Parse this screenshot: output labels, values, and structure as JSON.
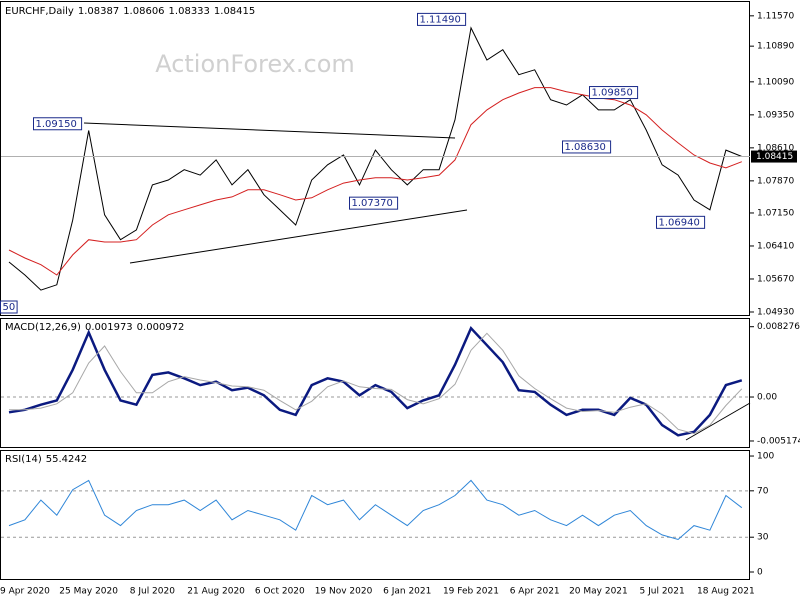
{
  "chart_data": [
    {
      "type": "line",
      "title": "EURCHF,Daily",
      "ohlc": [
        1.08387,
        1.08606,
        1.08333,
        1.08415
      ],
      "watermark": "ActionForex.com",
      "series": [
        {
          "color": "#000000",
          "values": [
            1.0605,
            1.0576,
            1.0542,
            1.0554,
            1.0699,
            1.09,
            1.0711,
            1.0655,
            1.0677,
            1.0778,
            1.0789,
            1.0812,
            1.08,
            1.0834,
            1.0778,
            1.0812,
            1.0756,
            1.0722,
            1.0688,
            1.0789,
            1.0823,
            1.0845,
            1.0778,
            1.0856,
            1.0812,
            1.0778,
            1.0812,
            1.0812,
            1.0924,
            1.113,
            1.1058,
            1.1081,
            1.1025,
            1.1036,
            1.0969,
            1.0957,
            1.098,
            1.0946,
            1.0946,
            1.0969,
            1.0901,
            1.0823,
            1.08,
            1.0744,
            1.0722,
            1.0856,
            1.08415
          ]
        },
        {
          "color": "#d42020",
          "values": [
            1.0632,
            1.0614,
            1.0599,
            1.0576,
            1.0621,
            1.0655,
            1.065,
            1.065,
            1.0655,
            1.0688,
            1.0711,
            1.0722,
            1.0733,
            1.0744,
            1.0751,
            1.0767,
            1.0767,
            1.0756,
            1.0744,
            1.0749,
            1.0767,
            1.0782,
            1.0789,
            1.0794,
            1.0794,
            1.0789,
            1.0794,
            1.08,
            1.0834,
            1.0913,
            1.0946,
            1.0969,
            1.0984,
            1.0996,
            1.0996,
            1.0987,
            1.098,
            1.0973,
            1.0969,
            1.0957,
            1.0935,
            1.0901,
            1.0872,
            1.0845,
            1.0827,
            1.0816,
            1.083
          ]
        }
      ],
      "annotations": [
        {
          "label": "1.09150",
          "value": 1.0915
        },
        {
          "label": "1.11490",
          "value": 1.1149
        },
        {
          "label": "1.07370",
          "value": 1.0737
        },
        {
          "label": "1.09850",
          "value": 1.0985
        },
        {
          "label": "1.08630",
          "value": 1.0863
        },
        {
          "label": "1.06940",
          "value": 1.0694
        },
        {
          "label": "50"
        }
      ],
      "ylim": [
        1.0484,
        1.1188
      ],
      "yticks": [
        {
          "value": 1.1157,
          "label": "1.11570"
        },
        {
          "value": 1.1089,
          "label": "1.10890"
        },
        {
          "value": 1.1009,
          "label": "1.10090"
        },
        {
          "value": 1.0935,
          "label": "1.09350"
        },
        {
          "value": 1.0861,
          "label": "1.08610"
        },
        {
          "value": 1.0787,
          "label": "1.07870"
        },
        {
          "value": 1.0715,
          "label": "1.07150"
        },
        {
          "value": 1.0641,
          "label": "1.06410"
        },
        {
          "value": 1.0567,
          "label": "1.05670"
        },
        {
          "value": 1.0493,
          "label": "1.04930"
        }
      ],
      "grid": false
    },
    {
      "type": "line",
      "title": "MACD(12,26,9)",
      "readout": [
        0.001973,
        0.000972
      ],
      "series": [
        {
          "color": "#0b1a80",
          "values": [
            -0.0018,
            -0.0015,
            -0.0009,
            -0.0004,
            0.0032,
            0.0076,
            0.0032,
            -0.0004,
            -0.0009,
            0.0026,
            0.0029,
            0.0022,
            0.0014,
            0.0018,
            0.0008,
            0.0011,
            0.0002,
            -0.0015,
            -0.0021,
            0.0014,
            0.0022,
            0.0018,
            0.0002,
            0.0014,
            0.0006,
            -0.0013,
            -0.0004,
            0.0002,
            0.0038,
            0.0081,
            0.0061,
            0.0041,
            0.0008,
            0.0006,
            -0.0009,
            -0.0021,
            -0.0015,
            -0.0015,
            -0.0021,
            -0.0001,
            -0.0009,
            -0.0033,
            -0.0045,
            -0.0041,
            -0.0021,
            0.0014,
            0.001973
          ]
        },
        {
          "color": "#a8a8a8",
          "values": [
            -0.0015,
            -0.0015,
            -0.0013,
            -0.0008,
            0.0005,
            0.004,
            0.006,
            0.003,
            0.0005,
            0.0005,
            0.0018,
            0.0024,
            0.002,
            0.0017,
            0.0013,
            0.0012,
            0.0008,
            -0.0004,
            -0.0015,
            -0.0005,
            0.0012,
            0.0019,
            0.0012,
            0.001,
            0.0009,
            -0.0003,
            -0.0008,
            -0.0002,
            0.0015,
            0.0055,
            0.0075,
            0.0055,
            0.0025,
            0.001,
            -0.0002,
            -0.0013,
            -0.0017,
            -0.0016,
            -0.0018,
            -0.0012,
            -0.0008,
            -0.002,
            -0.0038,
            -0.0043,
            -0.0033,
            -0.001,
            0.000972
          ]
        }
      ],
      "ylim": [
        -0.006,
        0.0093
      ],
      "yticks": [
        0.008276,
        {
          "value": 0,
          "label": "0.00"
        },
        -0.005174
      ],
      "grid": "dashed"
    },
    {
      "type": "line",
      "title": "RSI(14)",
      "readout": [
        55.4242
      ],
      "series": [
        {
          "color": "#2f86d8",
          "values": [
            40,
            45,
            62,
            49,
            71,
            79,
            49,
            40,
            53,
            58,
            58,
            62,
            53,
            62,
            45,
            53,
            49,
            45,
            36,
            66,
            58,
            62,
            45,
            58,
            49,
            40,
            53,
            58,
            66,
            79,
            62,
            58,
            49,
            53,
            45,
            40,
            49,
            40,
            49,
            53,
            40,
            32,
            28,
            40,
            36,
            66,
            55.4242
          ]
        }
      ],
      "ylim": [
        -6.9,
        105.2
      ],
      "yticks": [
        100,
        70,
        30,
        0
      ],
      "grid": "dashed",
      "categories": [
        null,
        "9 Apr 2020",
        null,
        null,
        null,
        "25 May 2020",
        null,
        null,
        null,
        "8 Jul 2020",
        null,
        null,
        null,
        "21 Aug 2020",
        null,
        null,
        null,
        "6 Oct 2020",
        null,
        null,
        null,
        "19 Nov 2020",
        null,
        null,
        null,
        "6 Jan 2021",
        null,
        null,
        null,
        "19 Feb 2021",
        null,
        null,
        null,
        "6 Apr 2021",
        null,
        null,
        null,
        "20 May 2021",
        null,
        null,
        null,
        "5 Jul 2021",
        null,
        null,
        null,
        "18 Aug 2021",
        null
      ]
    }
  ]
}
